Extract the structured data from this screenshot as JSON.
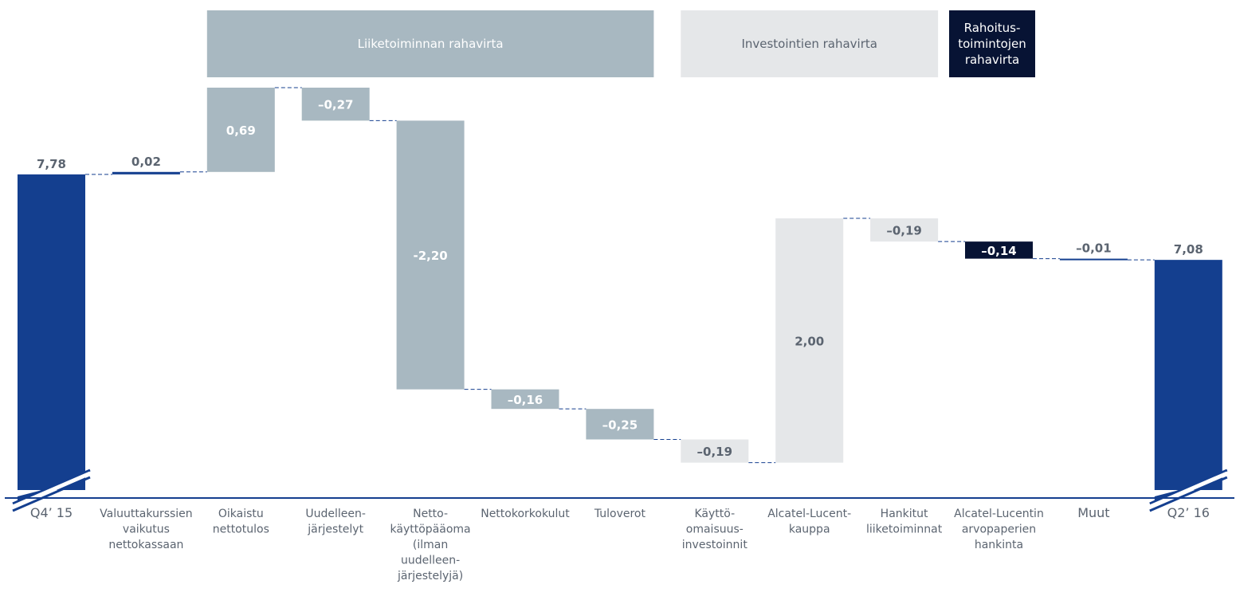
{
  "chart_data": {
    "type": "waterfall",
    "title": "",
    "xlabel": "",
    "ylabel": "",
    "colors": {
      "total": "#143f8f",
      "operating": "#a8b8c1",
      "investing": "#e5e7e9",
      "financing": "#071334",
      "operating_label": "#ffffff",
      "light_label": "#5b6470",
      "financing_label": "#ffffff",
      "axis": "#143f8f",
      "connector": "#143f8f"
    },
    "groups": [
      {
        "key": "operating",
        "label": "Liiketoiminnan rahavirta"
      },
      {
        "key": "investing",
        "label": "Investointien rahavirta"
      },
      {
        "key": "financing",
        "label": "Rahoitus-\ntoimintojen\nrahavirta"
      }
    ],
    "steps": [
      {
        "category": "Q4’ 15",
        "value": 7.78,
        "label": "7,78",
        "kind": "total",
        "broken_axis": true
      },
      {
        "category": "Valuuttakurssien\nvaikutus\nnettokassaan",
        "value": 0.02,
        "label": "0,02",
        "kind": "delta",
        "group": "total"
      },
      {
        "category": "Oikaistu\nnettotulos",
        "value": 0.69,
        "label": "0,69",
        "kind": "delta",
        "group": "operating"
      },
      {
        "category": "Uudelleen-\njärjestelyt",
        "value": -0.27,
        "label": "–0,27",
        "kind": "delta",
        "group": "operating"
      },
      {
        "category": "Netto-\nkäyttöpääoma\n(ilman\nuudelleen-\njärjestelyjä)",
        "value": -2.2,
        "label": "-2,20",
        "kind": "delta",
        "group": "operating"
      },
      {
        "category": "Nettokorkokulut",
        "value": -0.16,
        "label": "–0,16",
        "kind": "delta",
        "group": "operating"
      },
      {
        "category": "Tuloverot",
        "value": -0.25,
        "label": "–0,25",
        "kind": "delta",
        "group": "operating"
      },
      {
        "category": "Käyttö-\nomaisuus-\ninvestoinnit",
        "value": -0.19,
        "label": "–0,19",
        "kind": "delta",
        "group": "investing"
      },
      {
        "category": "Alcatel-Lucent-\nkauppa",
        "value": 2.0,
        "label": "2,00",
        "kind": "delta",
        "group": "investing"
      },
      {
        "category": "Hankitut\nliiketoiminnat",
        "value": -0.19,
        "label": "–0,19",
        "kind": "delta",
        "group": "investing"
      },
      {
        "category": "Alcatel-Lucentin\narvopaperien\nhankinta",
        "value": -0.14,
        "label": "–0,14",
        "kind": "delta",
        "group": "financing"
      },
      {
        "category": "Muut",
        "value": -0.01,
        "label": "–0,01",
        "kind": "delta",
        "group": "total"
      },
      {
        "category": "Q2’ 16",
        "value": 7.08,
        "label": "7,08",
        "kind": "total",
        "broken_axis": true
      }
    ]
  }
}
